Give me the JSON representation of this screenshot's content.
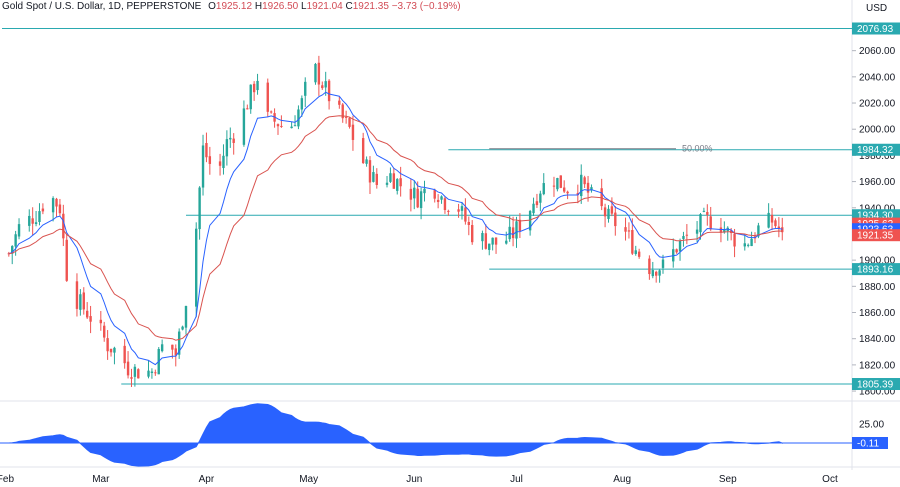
{
  "header": {
    "symbol": "Gold Spot / U.S. Dollar, 1D, PEPPERSTONE",
    "open_label": "O",
    "open": "1925.12",
    "high_label": "H",
    "high": "1926.50",
    "low_label": "L",
    "low": "1921.04",
    "close_label": "C",
    "close": "1921.35",
    "change": "−3.73 (−0.19%)"
  },
  "colors": {
    "up": "#26a69a",
    "down": "#ef5350",
    "ema_fast": "#2962ff",
    "ema_slow": "#d9534f",
    "level": "#2aa9b0",
    "osc": "#2962ff",
    "grid": "#e0e3eb",
    "text": "#131722"
  },
  "chart_data": {
    "type": "candlestick",
    "title": "Gold Spot / U.S. Dollar, 1D, PEPPERSTONE",
    "currency": "USD",
    "price_axis": {
      "ticks": [
        1800,
        1820,
        1840,
        1860,
        1880,
        1900,
        1920,
        1940,
        1960,
        1980,
        2000,
        2020,
        2040,
        2060
      ],
      "range": [
        1797,
        2088
      ]
    },
    "time_axis": {
      "ticks": [
        {
          "label": "Feb",
          "day": 1
        },
        {
          "label": "Mar",
          "day": 29
        },
        {
          "label": "Apr",
          "day": 60
        },
        {
          "label": "May",
          "day": 90
        },
        {
          "label": "Jun",
          "day": 121
        },
        {
          "label": "Jul",
          "day": 151
        },
        {
          "label": "Aug",
          "day": 182
        },
        {
          "label": "Sep",
          "day": 213
        },
        {
          "label": "Oct",
          "day": 243
        }
      ],
      "start_date": "2023-01-01",
      "end_day": 248
    },
    "waypoints": [
      [
        2,
        1905
      ],
      [
        5,
        1925
      ],
      [
        10,
        1935
      ],
      [
        14,
        1950
      ],
      [
        17,
        1940
      ],
      [
        19,
        1890
      ],
      [
        22,
        1870
      ],
      [
        25,
        1860
      ],
      [
        28,
        1850
      ],
      [
        31,
        1835
      ],
      [
        34,
        1830
      ],
      [
        37,
        1818
      ],
      [
        40,
        1815
      ],
      [
        44,
        1815
      ],
      [
        48,
        1840
      ],
      [
        51,
        1828
      ],
      [
        54,
        1870
      ],
      [
        57,
        1925
      ],
      [
        59,
        1985
      ],
      [
        63,
        1962
      ],
      [
        66,
        1990
      ],
      [
        69,
        2000
      ],
      [
        72,
        2020
      ],
      [
        75,
        2040
      ],
      [
        78,
        2008
      ],
      [
        81,
        2005
      ],
      [
        84,
        1998
      ],
      [
        88,
        2020
      ],
      [
        91,
        2050
      ],
      [
        94,
        2035
      ],
      [
        98,
        2015
      ],
      [
        102,
        2000
      ],
      [
        106,
        1975
      ],
      [
        110,
        1958
      ],
      [
        114,
        1965
      ],
      [
        118,
        1955
      ],
      [
        122,
        1948
      ],
      [
        126,
        1958
      ],
      [
        130,
        1945
      ],
      [
        134,
        1940
      ],
      [
        138,
        1920
      ],
      [
        142,
        1915
      ],
      [
        146,
        1912
      ],
      [
        150,
        1920
      ],
      [
        154,
        1935
      ],
      [
        158,
        1955
      ],
      [
        162,
        1962
      ],
      [
        166,
        1955
      ],
      [
        170,
        1958
      ],
      [
        174,
        1945
      ],
      [
        178,
        1932
      ],
      [
        182,
        1925
      ],
      [
        186,
        1908
      ],
      [
        190,
        1895
      ],
      [
        194,
        1895
      ],
      [
        198,
        1910
      ],
      [
        202,
        1920
      ],
      [
        206,
        1930
      ],
      [
        210,
        1930
      ],
      [
        214,
        1918
      ],
      [
        218,
        1912
      ],
      [
        222,
        1924
      ],
      [
        226,
        1930
      ],
      [
        229,
        1921.35
      ]
    ],
    "series": [
      {
        "name": "Fast EMA",
        "kind": "ema",
        "period": 9
      },
      {
        "name": "Slow EMA",
        "kind": "ema",
        "period": 21
      }
    ],
    "levels": [
      {
        "label": "2076.93",
        "value": 2076.93,
        "from_day": 0
      },
      {
        "label": "1984.32",
        "value": 1984.32,
        "from_day": 131
      },
      {
        "label": "1934.30",
        "value": 1934.3,
        "from_day": 54
      },
      {
        "label": "1893.16",
        "value": 1893.16,
        "from_day": 143
      },
      {
        "label": "1805.39",
        "value": 1805.39,
        "from_day": 35
      }
    ],
    "fib_label": "50.00%",
    "fib_from_day": 143,
    "price_tags": [
      {
        "label": "1925.62",
        "value": 1925.62,
        "color": "#ef5350"
      },
      {
        "label": "1923.63",
        "value": 1923.63,
        "color": "#2962ff"
      },
      {
        "label": "1921.35",
        "value": 1921.35,
        "color": "#ef5350"
      }
    ],
    "oscillator": {
      "tick_label": "25.00",
      "current_label": "-0.11",
      "current_value": -0.11,
      "range": [
        -25,
        50
      ]
    }
  }
}
